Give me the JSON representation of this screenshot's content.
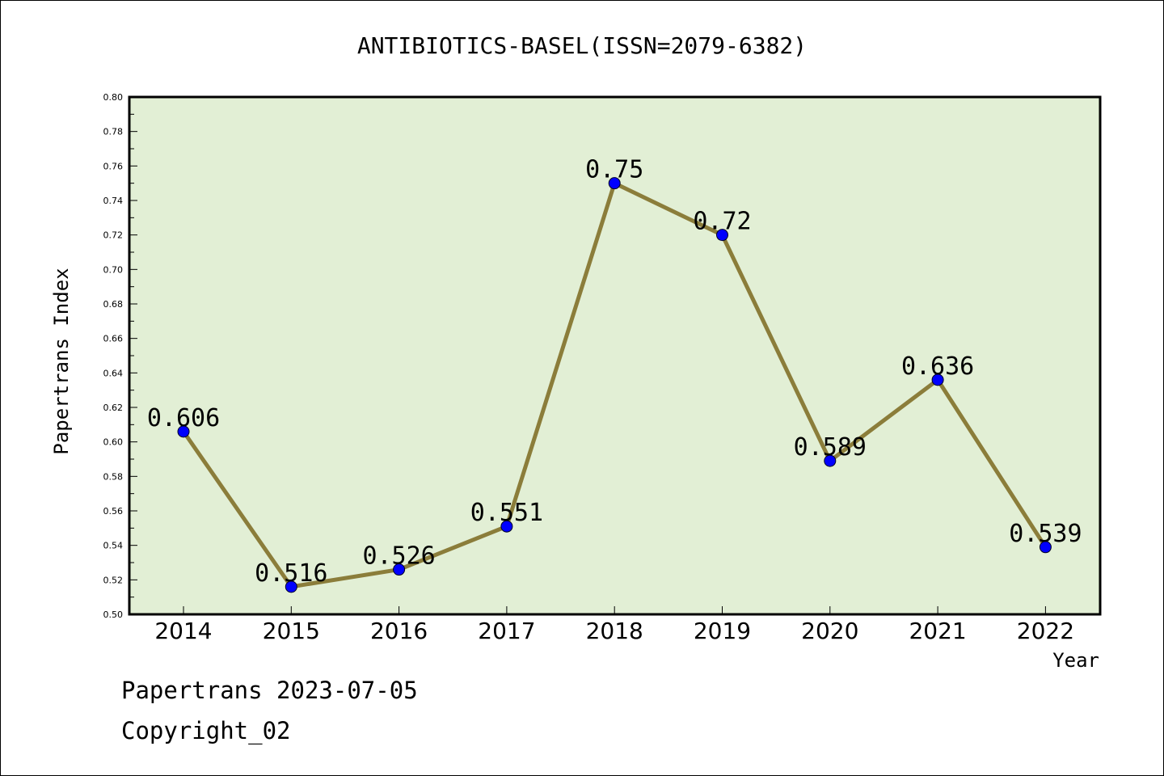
{
  "chart_data": {
    "type": "line",
    "title": "ANTIBIOTICS-BASEL(ISSN=2079-6382)",
    "xlabel": "Year",
    "ylabel": "Papertrans Index",
    "categories": [
      "2014",
      "2015",
      "2016",
      "2017",
      "2018",
      "2019",
      "2020",
      "2021",
      "2022"
    ],
    "values": [
      0.606,
      0.516,
      0.526,
      0.551,
      0.75,
      0.72,
      0.589,
      0.636,
      0.539
    ],
    "data_labels": [
      "0.606",
      "0.516",
      "0.526",
      "0.551",
      "0.75",
      "0.72",
      "0.589",
      "0.636",
      "0.539"
    ],
    "ylim": [
      0.5,
      0.8
    ],
    "yticks": [
      "0.50",
      "0.52",
      "0.54",
      "0.56",
      "0.58",
      "0.60",
      "0.62",
      "0.64",
      "0.66",
      "0.68",
      "0.70",
      "0.72",
      "0.74",
      "0.76",
      "0.78",
      "0.80"
    ],
    "grid": false,
    "plot_background": "#e2efd5",
    "line_color": "#8b7d3a",
    "marker_color": "#0000ff"
  },
  "footer": {
    "line1": "Papertrans 2023-07-05",
    "line2": "Copyright_02"
  }
}
